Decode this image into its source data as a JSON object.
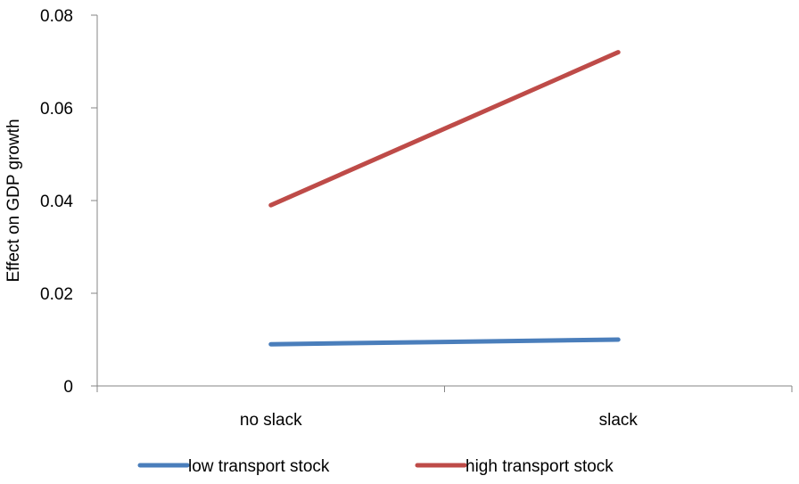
{
  "chart_data": {
    "type": "line",
    "title": "",
    "xlabel": "",
    "ylabel": "Effect on GDP growth",
    "categories": [
      "no slack",
      "slack"
    ],
    "ylim": [
      0,
      0.08
    ],
    "y_ticks": [
      "0",
      "0.02",
      "0.04",
      "0.06",
      "0.08"
    ],
    "grid": false,
    "legend_position": "bottom",
    "series": [
      {
        "name": "low transport stock",
        "values": [
          0.009,
          0.01
        ],
        "color": "#4a7ebb"
      },
      {
        "name": "high transport stock",
        "values": [
          0.039,
          0.072
        ],
        "color": "#be4b48"
      }
    ]
  }
}
